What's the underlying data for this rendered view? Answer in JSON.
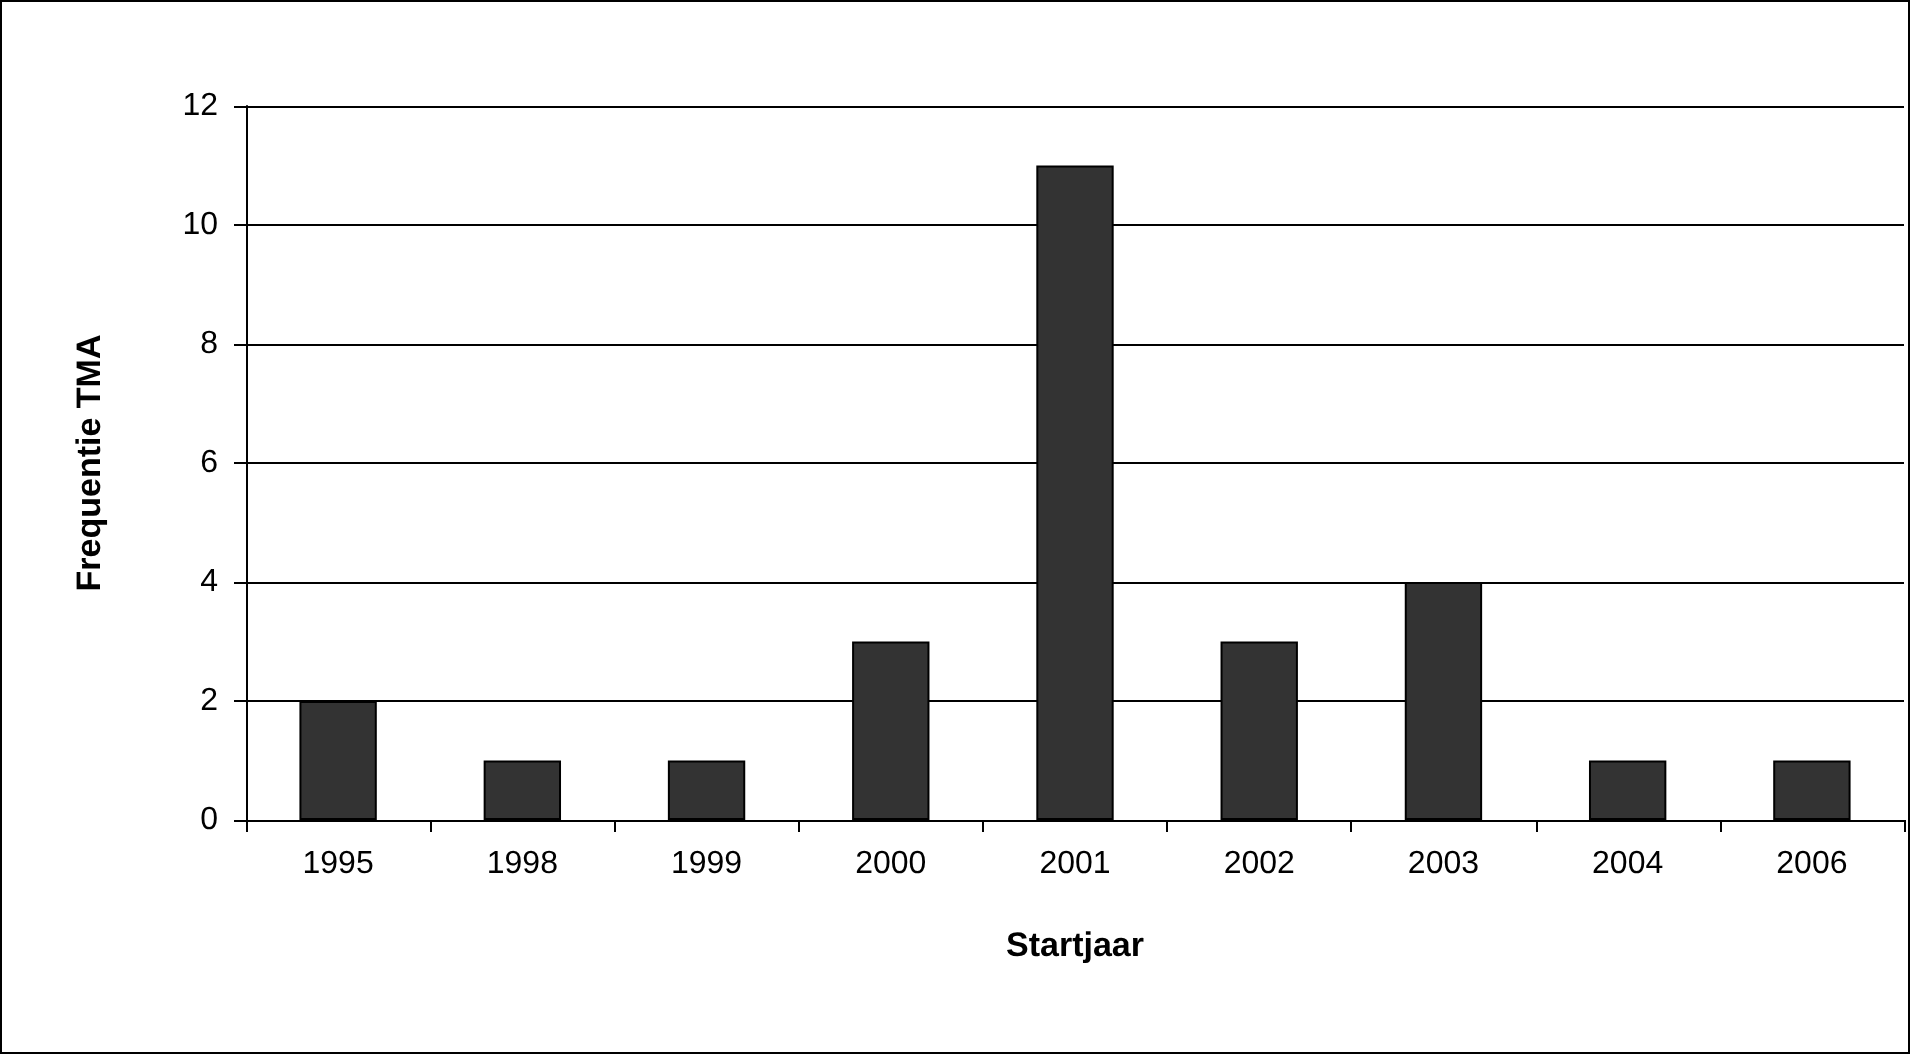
{
  "chart_data": {
    "type": "bar",
    "xlabel": "Startjaar",
    "ylabel": "Frequentie TMA",
    "categories": [
      "1995",
      "1998",
      "1999",
      "2000",
      "2001",
      "2002",
      "2003",
      "2004",
      "2006"
    ],
    "values": [
      2,
      1,
      1,
      3,
      11,
      3,
      4,
      1,
      1
    ],
    "color": "#333333",
    "ylim": [
      0,
      12
    ],
    "yticks": [
      0,
      2,
      4,
      6,
      8,
      10,
      12
    ],
    "grid": "y"
  }
}
